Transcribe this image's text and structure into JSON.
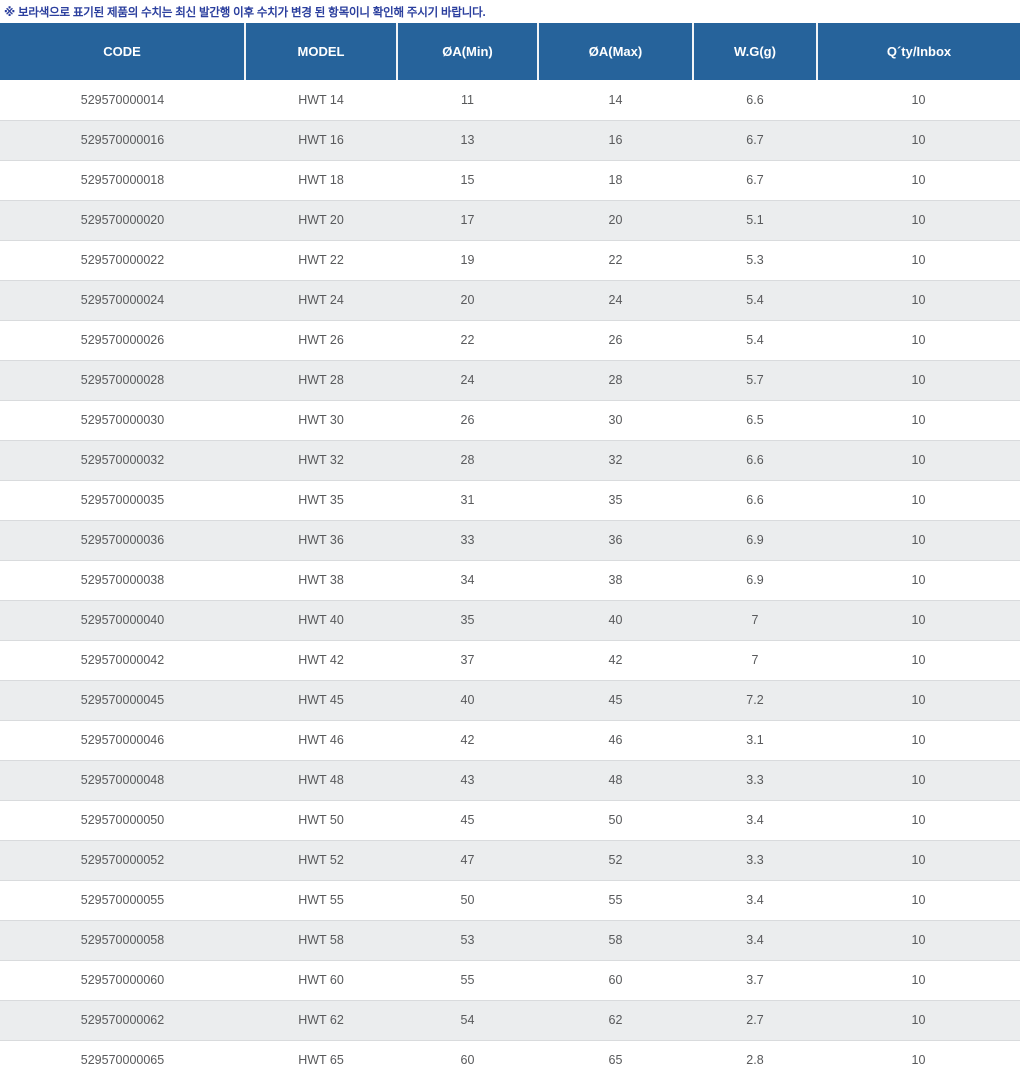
{
  "note": "※ 보라색으로 표기된 제품의 수치는 최신 발간행 이후 수치가 변경 된 항목이니 확인해 주시기 바랍니다.",
  "table": {
    "columns": [
      "CODE",
      "MODEL",
      "ØA(Min)",
      "ØA(Max)",
      "W.G(g)",
      "Q´ty/Inbox"
    ],
    "rows": [
      [
        "529570000014",
        "HWT 14",
        "11",
        "14",
        "6.6",
        "10"
      ],
      [
        "529570000016",
        "HWT 16",
        "13",
        "16",
        "6.7",
        "10"
      ],
      [
        "529570000018",
        "HWT 18",
        "15",
        "18",
        "6.7",
        "10"
      ],
      [
        "529570000020",
        "HWT 20",
        "17",
        "20",
        "5.1",
        "10"
      ],
      [
        "529570000022",
        "HWT 22",
        "19",
        "22",
        "5.3",
        "10"
      ],
      [
        "529570000024",
        "HWT 24",
        "20",
        "24",
        "5.4",
        "10"
      ],
      [
        "529570000026",
        "HWT 26",
        "22",
        "26",
        "5.4",
        "10"
      ],
      [
        "529570000028",
        "HWT 28",
        "24",
        "28",
        "5.7",
        "10"
      ],
      [
        "529570000030",
        "HWT 30",
        "26",
        "30",
        "6.5",
        "10"
      ],
      [
        "529570000032",
        "HWT 32",
        "28",
        "32",
        "6.6",
        "10"
      ],
      [
        "529570000035",
        "HWT 35",
        "31",
        "35",
        "6.6",
        "10"
      ],
      [
        "529570000036",
        "HWT 36",
        "33",
        "36",
        "6.9",
        "10"
      ],
      [
        "529570000038",
        "HWT 38",
        "34",
        "38",
        "6.9",
        "10"
      ],
      [
        "529570000040",
        "HWT 40",
        "35",
        "40",
        "7",
        "10"
      ],
      [
        "529570000042",
        "HWT 42",
        "37",
        "42",
        "7",
        "10"
      ],
      [
        "529570000045",
        "HWT 45",
        "40",
        "45",
        "7.2",
        "10"
      ],
      [
        "529570000046",
        "HWT 46",
        "42",
        "46",
        "3.1",
        "10"
      ],
      [
        "529570000048",
        "HWT 48",
        "43",
        "48",
        "3.3",
        "10"
      ],
      [
        "529570000050",
        "HWT 50",
        "45",
        "50",
        "3.4",
        "10"
      ],
      [
        "529570000052",
        "HWT 52",
        "47",
        "52",
        "3.3",
        "10"
      ],
      [
        "529570000055",
        "HWT 55",
        "50",
        "55",
        "3.4",
        "10"
      ],
      [
        "529570000058",
        "HWT 58",
        "53",
        "58",
        "3.4",
        "10"
      ],
      [
        "529570000060",
        "HWT 60",
        "55",
        "60",
        "3.7",
        "10"
      ],
      [
        "529570000062",
        "HWT 62",
        "54",
        "62",
        "2.7",
        "10"
      ],
      [
        "529570000065",
        "HWT 65",
        "60",
        "65",
        "2.8",
        "10"
      ]
    ]
  },
  "colors": {
    "header_bg": "#26639b",
    "header_text": "#ffffff",
    "row_alt_bg": "#ebedee",
    "row_border": "#d9dbdd",
    "note_text": "#2b3f9e",
    "cell_text": "#58595b"
  }
}
